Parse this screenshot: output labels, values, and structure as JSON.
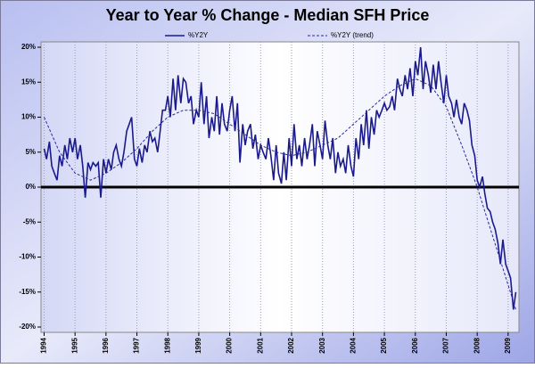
{
  "chart_data": {
    "type": "line",
    "title": "Year to Year % Change - Median SFH Price",
    "xlim": [
      1993.9,
      2009.35
    ],
    "xticks": [
      1994,
      1995,
      1996,
      1997,
      1998,
      1999,
      2000,
      2001,
      2002,
      2003,
      2004,
      2005,
      2006,
      2007,
      2008,
      2009
    ],
    "ylim": [
      -20,
      20
    ],
    "yticks": [
      {
        "value": -20,
        "label": "-20%"
      },
      {
        "value": -15,
        "label": "-15%"
      },
      {
        "value": -10,
        "label": "-10%"
      },
      {
        "value": -5,
        "label": "-5%"
      },
      {
        "value": 0,
        "label": "0%"
      },
      {
        "value": 5,
        "label": "5%"
      },
      {
        "value": 10,
        "label": "10%"
      },
      {
        "value": 15,
        "label": "15%"
      },
      {
        "value": 20,
        "label": "20%"
      }
    ],
    "grid": true,
    "legend": "top",
    "series": [
      {
        "name": "%Y2Y",
        "color": "#1a1a8c",
        "style": "solid",
        "x": [
          1994,
          1994.08,
          1994.17,
          1994.25,
          1994.33,
          1994.42,
          1994.5,
          1994.58,
          1994.67,
          1994.75,
          1994.83,
          1994.92,
          1995,
          1995.08,
          1995.17,
          1995.25,
          1995.33,
          1995.42,
          1995.5,
          1995.58,
          1995.67,
          1995.75,
          1995.83,
          1995.92,
          1996,
          1996.08,
          1996.17,
          1996.25,
          1996.33,
          1996.42,
          1996.5,
          1996.58,
          1996.67,
          1996.75,
          1996.83,
          1996.92,
          1997,
          1997.08,
          1997.17,
          1997.25,
          1997.33,
          1997.42,
          1997.5,
          1997.58,
          1997.67,
          1997.75,
          1997.83,
          1997.92,
          1998,
          1998.08,
          1998.17,
          1998.25,
          1998.33,
          1998.42,
          1998.5,
          1998.58,
          1998.67,
          1998.75,
          1998.83,
          1998.92,
          1999,
          1999.08,
          1999.17,
          1999.25,
          1999.33,
          1999.42,
          1999.5,
          1999.58,
          1999.67,
          1999.75,
          1999.83,
          1999.92,
          2000,
          2000.08,
          2000.17,
          2000.25,
          2000.33,
          2000.42,
          2000.5,
          2000.58,
          2000.67,
          2000.75,
          2000.83,
          2000.92,
          2001,
          2001.08,
          2001.17,
          2001.25,
          2001.33,
          2001.42,
          2001.5,
          2001.58,
          2001.67,
          2001.75,
          2001.83,
          2001.92,
          2002,
          2002.08,
          2002.17,
          2002.25,
          2002.33,
          2002.42,
          2002.5,
          2002.58,
          2002.67,
          2002.75,
          2002.83,
          2002.92,
          2003,
          2003.08,
          2003.17,
          2003.25,
          2003.33,
          2003.42,
          2003.5,
          2003.58,
          2003.67,
          2003.75,
          2003.83,
          2003.92,
          2004,
          2004.08,
          2004.17,
          2004.25,
          2004.33,
          2004.42,
          2004.5,
          2004.58,
          2004.67,
          2004.75,
          2004.83,
          2004.92,
          2005,
          2005.08,
          2005.17,
          2005.25,
          2005.33,
          2005.42,
          2005.5,
          2005.58,
          2005.67,
          2005.75,
          2005.83,
          2005.92,
          2006,
          2006.08,
          2006.17,
          2006.25,
          2006.33,
          2006.42,
          2006.5,
          2006.58,
          2006.67,
          2006.75,
          2006.83,
          2006.92,
          2007,
          2007.08,
          2007.17,
          2007.25,
          2007.33,
          2007.42,
          2007.5,
          2007.58,
          2007.67,
          2007.75,
          2007.83,
          2007.92,
          2008,
          2008.08,
          2008.17,
          2008.25,
          2008.33,
          2008.42,
          2008.5,
          2008.58,
          2008.67,
          2008.75,
          2008.83,
          2008.92,
          2009,
          2009.08,
          2009.17,
          2009.25
        ],
        "values": [
          5.5,
          4,
          6.5,
          3,
          2,
          1,
          4.5,
          3,
          6,
          4,
          7,
          5,
          7,
          4,
          6,
          3,
          -1.5,
          3.5,
          2.5,
          3.5,
          3,
          3.5,
          -1.5,
          4,
          2,
          4,
          2.5,
          5,
          6,
          4,
          3,
          5,
          8,
          9,
          10,
          4,
          3,
          5.5,
          3.5,
          6,
          5,
          8,
          6.5,
          7,
          5,
          8,
          11,
          11,
          13,
          10,
          15.5,
          11,
          16,
          12,
          15.5,
          15,
          12,
          13,
          9,
          11,
          10,
          15,
          9,
          13,
          7,
          10,
          8,
          13,
          7.5,
          12,
          9,
          8,
          11,
          13,
          8,
          12,
          3.5,
          9,
          6,
          8,
          9,
          5.5,
          7.5,
          4,
          6,
          5,
          4,
          7,
          4.5,
          1,
          6,
          2,
          0.5,
          5,
          1,
          7,
          3,
          9,
          4,
          6,
          3,
          7,
          4,
          6,
          9,
          3,
          8,
          6,
          4,
          9.5,
          6,
          4,
          7,
          2,
          5,
          3,
          4,
          2,
          6,
          3,
          1.5,
          7,
          4,
          9,
          6,
          11,
          5.5,
          10,
          7.5,
          11,
          10,
          11,
          12,
          11,
          11.5,
          13,
          11,
          15.5,
          14,
          13,
          16,
          14,
          17,
          13,
          18,
          16,
          20,
          14,
          18,
          16,
          13.5,
          17.5,
          14,
          18,
          15,
          12,
          16,
          13,
          12,
          10,
          12.5,
          10,
          9,
          12,
          11,
          9.5,
          6,
          4.5,
          1,
          0,
          1.5,
          -1,
          -3,
          -3.5,
          -5,
          -6,
          -8,
          -11,
          -7.5,
          -11,
          -12,
          -13,
          -17.5,
          -15
        ]
      },
      {
        "name": "%Y2Y (trend)",
        "color": "#2a2a9c",
        "style": "dashed",
        "x": [
          1994,
          1994.5,
          1995,
          1995.5,
          1996,
          1996.5,
          1997,
          1997.5,
          1998,
          1998.5,
          1999,
          1999.5,
          2000,
          2000.5,
          2001,
          2001.5,
          2002,
          2002.5,
          2003,
          2003.5,
          2004,
          2004.5,
          2005,
          2005.5,
          2006,
          2006.5,
          2007,
          2007.5,
          2008,
          2008.5,
          2009,
          2009.25
        ],
        "values": [
          10,
          5,
          2,
          1,
          2,
          3.5,
          5.5,
          8,
          10,
          11,
          11,
          10.5,
          9,
          7.5,
          6,
          5,
          4.5,
          5,
          6,
          7,
          9,
          11,
          13,
          14.5,
          15.5,
          14.5,
          11.5,
          6,
          0,
          -7,
          -14,
          -17.5
        ]
      }
    ]
  }
}
